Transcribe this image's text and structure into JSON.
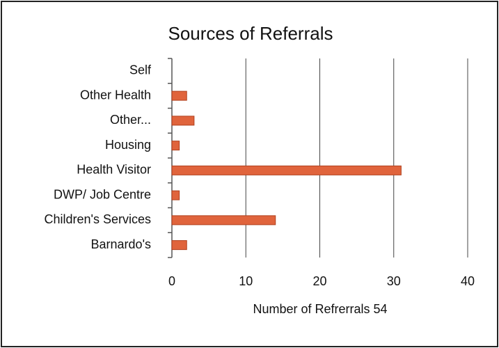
{
  "chart_data": {
    "type": "barh",
    "title": "Sources of Referrals",
    "categories": [
      "Self",
      "Other Health",
      "Other...",
      "Housing",
      "Health Visitor",
      "DWP/ Job Centre",
      "Children's Services",
      "Barnardo's"
    ],
    "values": [
      0,
      2,
      3,
      1,
      31,
      1,
      14,
      2
    ],
    "color": "#e0643c",
    "xlabel": "Number of Refrerrals 54",
    "xlim": [
      0,
      40
    ],
    "xticks": [
      0,
      10,
      20,
      30,
      40
    ],
    "grid": true
  }
}
